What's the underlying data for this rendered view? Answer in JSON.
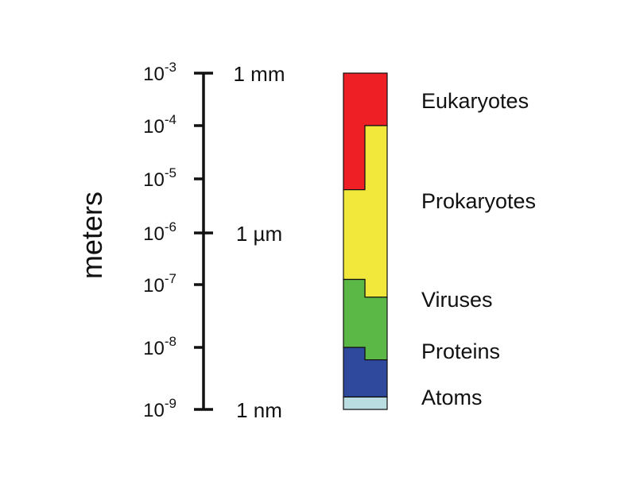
{
  "axis": {
    "title": "meters",
    "ticks": [
      {
        "base": "10",
        "exp": "-3",
        "log10_m": -3,
        "unit_label": "1 mm",
        "major": true
      },
      {
        "base": "10",
        "exp": "-4",
        "log10_m": -4,
        "unit_label": "",
        "major": false
      },
      {
        "base": "10",
        "exp": "-5",
        "log10_m": -5,
        "unit_label": "",
        "major": false
      },
      {
        "base": "10",
        "exp": "-6",
        "log10_m": -6,
        "unit_label": "1 µm",
        "major": true
      },
      {
        "base": "10",
        "exp": "-7",
        "log10_m": -7,
        "unit_label": "",
        "major": false
      },
      {
        "base": "10",
        "exp": "-8",
        "log10_m": -8,
        "unit_label": "",
        "major": false
      },
      {
        "base": "10",
        "exp": "-9",
        "log10_m": -9,
        "unit_label": "1 nm",
        "major": true
      }
    ]
  },
  "ranges": [
    {
      "label": "Eukaryotes",
      "color": "#ee2026",
      "left_log10": [
        -5.2,
        -3.0
      ],
      "right_log10": [
        -4.0,
        -3.0
      ]
    },
    {
      "label": "Prokaryotes",
      "color": "#f2e83c",
      "left_log10": [
        -6.9,
        -5.2
      ],
      "right_log10": [
        -7.2,
        -4.0
      ]
    },
    {
      "label": "Viruses",
      "color": "#5bb846",
      "left_log10": [
        -8.0,
        -6.9
      ],
      "right_log10": [
        -8.2,
        -7.2
      ]
    },
    {
      "label": "Proteins",
      "color": "#2f4a9c",
      "left_log10": [
        -8.8,
        -8.0
      ],
      "right_log10": [
        -8.8,
        -8.2
      ]
    },
    {
      "label": "Atoms",
      "color": "#b9dde0",
      "left_log10": [
        -9.0,
        -8.8
      ],
      "right_log10": [
        -9.0,
        -8.8
      ]
    }
  ]
}
